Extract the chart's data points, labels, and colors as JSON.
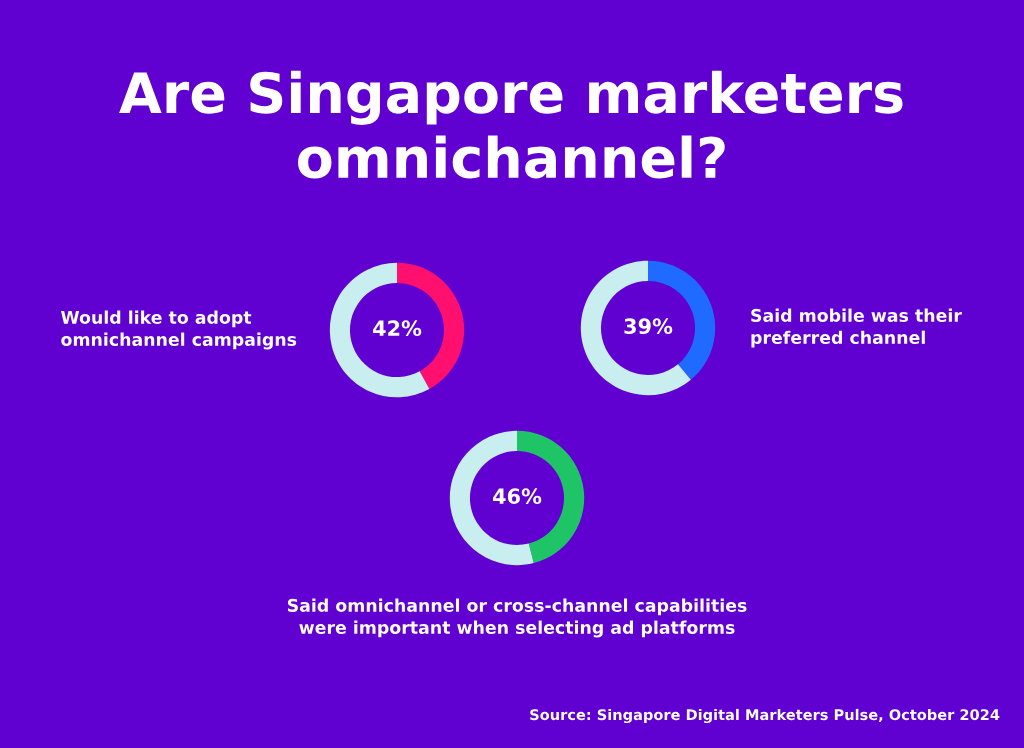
{
  "chart_data": [
    {
      "type": "donut",
      "title": "Are Singapore marketers\nomnichannel?",
      "categories": [
        null,
        null
      ],
      "values": [
        42,
        58
      ],
      "colors": [
        "#ff0f6e",
        "#c8eef0"
      ],
      "value_labels": [
        "42%",
        null
      ],
      "annotations": [
        "Would like to adopt\nomnichannel campaigns"
      ]
    },
    {
      "type": "donut",
      "categories": [
        null,
        null
      ],
      "values": [
        39,
        61
      ],
      "colors": [
        "#1f6bff",
        "#c8eef0"
      ],
      "value_labels": [
        "39%",
        null
      ],
      "annotations": [
        "Said mobile was their\npreferred channel"
      ]
    },
    {
      "type": "donut",
      "categories": [
        null,
        null
      ],
      "values": [
        46,
        54
      ],
      "colors": [
        "#1fc466",
        "#c8eef0"
      ],
      "value_labels": [
        "46%",
        null
      ],
      "annotations": [
        "Said omnichannel or cross-channel capabilities\nwere important when selecting ad platforms",
        "Source: Singapore Digital Marketers Pulse, October 2024"
      ]
    }
  ]
}
